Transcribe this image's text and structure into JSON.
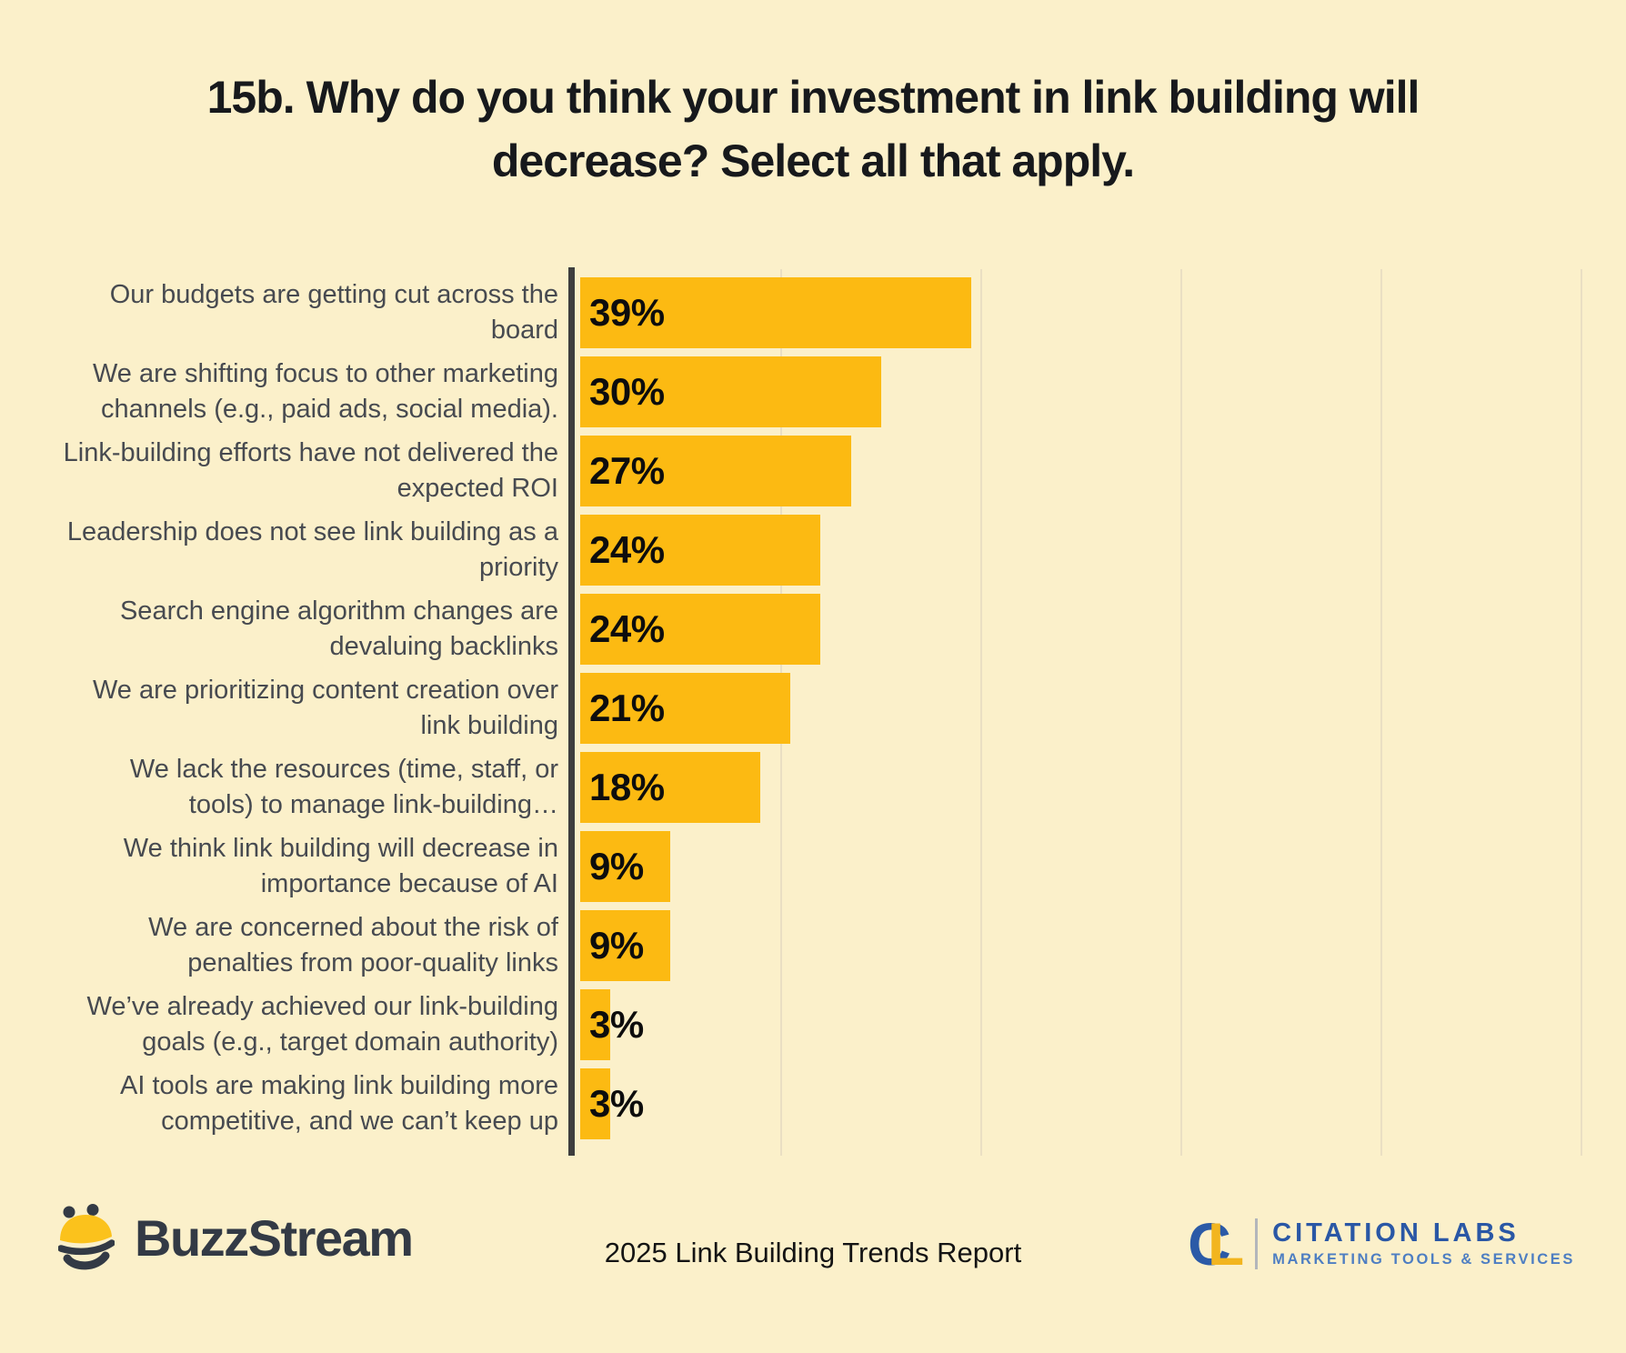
{
  "page": {
    "background_color": "#FBF0CA"
  },
  "title_lines": [
    "15b. Why do you think your investment in link building will",
    "decrease? Select all that apply."
  ],
  "chart_data": {
    "type": "bar",
    "orientation": "horizontal",
    "title": "15b. Why do you think your investment in link building will decrease? Select all that apply.",
    "categories": [
      "Our budgets are getting cut across the board",
      "We are shifting focus to other marketing channels (e.g., paid ads, social media).",
      "Link-building efforts have not delivered the expected ROI",
      "Leadership does not see link building as a priority",
      "Search engine algorithm changes are devaluing backlinks",
      "We are prioritizing content creation over link building",
      "We lack the resources (time, staff, or tools) to manage link-building…",
      "We think link building will decrease in importance because of AI",
      "We are concerned about the risk of penalties from poor-quality links",
      "We’ve already achieved our link-building goals (e.g., target domain authority)",
      "AI tools are making link building more competitive, and we can’t keep up"
    ],
    "values": [
      39,
      30,
      27,
      24,
      24,
      21,
      18,
      9,
      9,
      3,
      3
    ],
    "value_labels": [
      "39%",
      "30%",
      "27%",
      "24%",
      "24%",
      "21%",
      "18%",
      "9%",
      "9%",
      "3%",
      "3%"
    ],
    "xlabel": "",
    "ylabel": "",
    "xlim": [
      0,
      100
    ],
    "gridlines_percent": [
      20,
      40,
      60,
      80,
      100
    ],
    "grid": true,
    "legend": "none",
    "bar_color": "#FCBA12",
    "axis_line_color": "#3E3E3E",
    "value_label_position": "inside-start"
  },
  "footer": {
    "brand_left": "BuzzStream",
    "center_text": "2025 Link Building Trends Report",
    "brand_right": {
      "monogram_c": "C",
      "monogram_l": "L",
      "name": "CITATION LABS",
      "tagline": "MARKETING TOOLS & SERVICES"
    }
  },
  "icons": {
    "bee_icon_dark": "#333A45",
    "bee_icon_yellow": "#FBC21C"
  }
}
